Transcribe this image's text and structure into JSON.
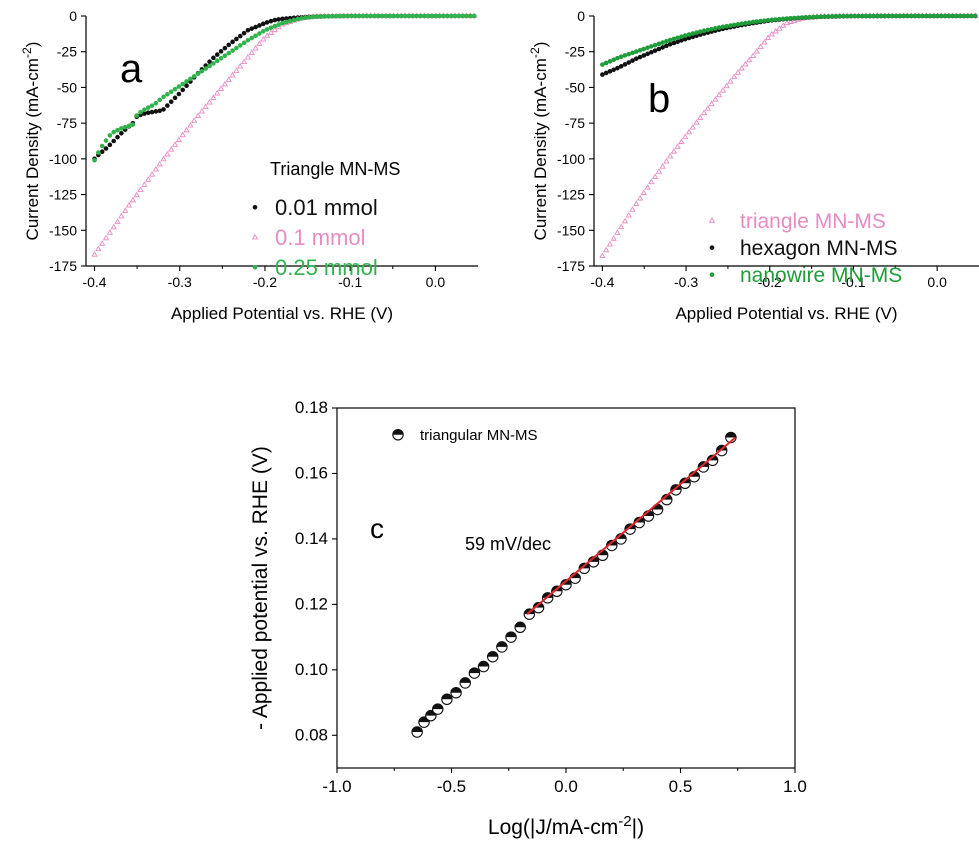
{
  "chart_data": [
    {
      "panel": "a",
      "type": "scatter",
      "panel_label": "a",
      "xlabel": "Applied Potential vs. RHE (V)",
      "ylabel": "Current Density (mA-cm",
      "ylabel_sup": "-2",
      "ylabel_end": ")",
      "xlim": [
        -0.41,
        0.05
      ],
      "ylim": [
        -175,
        0
      ],
      "xticks": [
        -0.4,
        -0.3,
        -0.2,
        -0.1,
        0.0
      ],
      "xtick_labels": [
        "-0.4",
        "-0.3",
        "-0.2",
        "-0.1",
        "0.0"
      ],
      "yticks": [
        0,
        -25,
        -50,
        -75,
        -100,
        -125,
        -150,
        -175
      ],
      "ytick_labels": [
        "0",
        "-25",
        "-50",
        "-75",
        "-100",
        "-125",
        "-150",
        "-175"
      ],
      "legend_title": "Triangle MN-MS",
      "legend_position": "lower-right",
      "series": [
        {
          "name": "0.01 mmol",
          "color": "#111111",
          "marker": "dot",
          "x": [
            -0.4,
            -0.395,
            -0.385,
            -0.375,
            -0.365,
            -0.355,
            -0.35,
            -0.34,
            -0.33,
            -0.32,
            -0.3,
            -0.28,
            -0.26,
            -0.24,
            -0.22,
            -0.2,
            -0.19,
            -0.18,
            -0.17,
            -0.16,
            -0.15,
            -0.14,
            -0.12,
            -0.1,
            -0.08,
            -0.05,
            0.0,
            0.05
          ],
          "y": [
            -100,
            -97,
            -92,
            -86,
            -80,
            -75,
            -70,
            -68,
            -67,
            -66,
            -54,
            -41,
            -29,
            -19,
            -10,
            -5,
            -3,
            -2,
            -1.5,
            -1,
            -0.6,
            -0.3,
            -0.1,
            0,
            0,
            0,
            0,
            0
          ]
        },
        {
          "name": "0.1 mmol",
          "color": "#e88bc4",
          "marker": "triangle",
          "x": [
            -0.4,
            -0.38,
            -0.36,
            -0.34,
            -0.32,
            -0.3,
            -0.28,
            -0.26,
            -0.24,
            -0.22,
            -0.2,
            -0.18,
            -0.16,
            -0.15,
            -0.14,
            -0.12,
            -0.1,
            -0.05,
            0.0,
            0.05
          ],
          "y": [
            -167,
            -150,
            -133,
            -117,
            -101,
            -86,
            -71,
            -57,
            -43,
            -29,
            -15,
            -6,
            -2,
            -1,
            -0.5,
            -0.2,
            0,
            0,
            0,
            0
          ]
        },
        {
          "name": "0.25 mmol",
          "color": "#2fb34a",
          "marker": "dot",
          "x": [
            -0.4,
            -0.395,
            -0.39,
            -0.38,
            -0.37,
            -0.36,
            -0.355,
            -0.35,
            -0.345,
            -0.34,
            -0.33,
            -0.32,
            -0.31,
            -0.3,
            -0.28,
            -0.26,
            -0.24,
            -0.22,
            -0.2,
            -0.18,
            -0.16,
            -0.15,
            -0.14,
            -0.12,
            -0.1,
            -0.05,
            0.0,
            0.05
          ],
          "y": [
            -101,
            -95,
            -90,
            -82,
            -79,
            -77,
            -76,
            -69,
            -67,
            -65,
            -62,
            -57,
            -53,
            -49,
            -41,
            -33,
            -25,
            -17,
            -10,
            -5,
            -2,
            -1,
            -0.5,
            -0.2,
            0,
            0,
            0,
            0
          ]
        }
      ]
    },
    {
      "panel": "b",
      "type": "scatter",
      "panel_label": "b",
      "xlabel": "Applied Potential vs. RHE (V)",
      "ylabel": "Current Density (mA-cm",
      "ylabel_sup": "-2",
      "ylabel_end": ")",
      "xlim": [
        -0.41,
        0.05
      ],
      "ylim": [
        -175,
        0
      ],
      "xticks": [
        -0.4,
        -0.3,
        -0.2,
        -0.1,
        0.0
      ],
      "xtick_labels": [
        "-0.4",
        "-0.3",
        "-0.2",
        "-0.1",
        "0.0"
      ],
      "yticks": [
        0,
        -25,
        -50,
        -75,
        -100,
        -125,
        -150,
        -175
      ],
      "ytick_labels": [
        "0",
        "-25",
        "-50",
        "-75",
        "-100",
        "-125",
        "-150",
        "-175"
      ],
      "legend_position": "lower-right",
      "series": [
        {
          "name": "triangle MN-MS",
          "color": "#e88bc4",
          "marker": "triangle",
          "x": [
            -0.4,
            -0.38,
            -0.36,
            -0.34,
            -0.32,
            -0.3,
            -0.28,
            -0.26,
            -0.24,
            -0.22,
            -0.2,
            -0.18,
            -0.16,
            -0.15,
            -0.14,
            -0.12,
            -0.1,
            -0.05,
            0.0,
            0.05
          ],
          "y": [
            -168,
            -150,
            -132,
            -115,
            -99,
            -84,
            -69,
            -55,
            -41,
            -28,
            -14,
            -5,
            -1.5,
            -0.8,
            -0.4,
            -0.1,
            0,
            0,
            0,
            0
          ]
        },
        {
          "name": "hexagon MN-MS",
          "color": "#111111",
          "marker": "dot",
          "x": [
            -0.4,
            -0.38,
            -0.36,
            -0.34,
            -0.32,
            -0.3,
            -0.28,
            -0.26,
            -0.24,
            -0.22,
            -0.2,
            -0.18,
            -0.16,
            -0.14,
            -0.12,
            -0.1,
            -0.05,
            0.0,
            0.05
          ],
          "y": [
            -41,
            -36,
            -30,
            -25,
            -20,
            -16,
            -12.5,
            -9.5,
            -7,
            -5,
            -3.2,
            -2,
            -1.2,
            -0.6,
            -0.3,
            -0.1,
            0,
            0,
            0
          ]
        },
        {
          "name": "nanowire MN-MS",
          "color": "#1f9d3a",
          "marker": "dot",
          "x": [
            -0.4,
            -0.38,
            -0.36,
            -0.34,
            -0.32,
            -0.3,
            -0.28,
            -0.26,
            -0.24,
            -0.22,
            -0.2,
            -0.18,
            -0.16,
            -0.14,
            -0.12,
            -0.1,
            -0.05,
            0.0,
            0.05
          ],
          "y": [
            -34,
            -29,
            -25,
            -21,
            -17,
            -13.5,
            -10.5,
            -8,
            -6,
            -4.2,
            -2.8,
            -1.8,
            -1,
            -0.5,
            -0.2,
            -0.1,
            0,
            0,
            0
          ]
        }
      ]
    },
    {
      "panel": "c",
      "type": "scatter",
      "panel_label": "c",
      "xlabel": "Log(|J/mA-cm",
      "xlabel_sup": "-2",
      "xlabel_end": "|)",
      "ylabel": "- Applied potential vs. RHE (V)",
      "xlim": [
        -1.0,
        1.0
      ],
      "ylim": [
        0.07,
        0.18
      ],
      "xticks": [
        -1.0,
        -0.5,
        0.0,
        0.5,
        1.0
      ],
      "xtick_labels": [
        "-1.0",
        "-0.5",
        "0.0",
        "0.5",
        "1.0"
      ],
      "yticks": [
        0.08,
        0.1,
        0.12,
        0.14,
        0.16,
        0.18
      ],
      "ytick_labels": [
        "0.08",
        "0.10",
        "0.12",
        "0.14",
        "0.16",
        "0.18"
      ],
      "legend_position": "top-left",
      "annotation": "59 mV/dec",
      "series": [
        {
          "name": "triangular MN-MS",
          "color": "#111111",
          "marker": "half-circle",
          "x": [
            -0.65,
            -0.62,
            -0.59,
            -0.56,
            -0.52,
            -0.48,
            -0.44,
            -0.4,
            -0.36,
            -0.32,
            -0.28,
            -0.24,
            -0.2,
            -0.16,
            -0.12,
            -0.08,
            -0.04,
            0.0,
            0.04,
            0.08,
            0.12,
            0.16,
            0.2,
            0.24,
            0.28,
            0.32,
            0.36,
            0.4,
            0.44,
            0.48,
            0.52,
            0.56,
            0.6,
            0.64,
            0.68,
            0.72
          ],
          "y": [
            0.081,
            0.084,
            0.086,
            0.088,
            0.091,
            0.093,
            0.096,
            0.099,
            0.101,
            0.104,
            0.107,
            0.11,
            0.113,
            0.117,
            0.119,
            0.122,
            0.124,
            0.126,
            0.128,
            0.131,
            0.133,
            0.135,
            0.138,
            0.14,
            0.143,
            0.145,
            0.147,
            0.149,
            0.152,
            0.155,
            0.157,
            0.159,
            0.162,
            0.164,
            0.167,
            0.171
          ]
        }
      ],
      "fit": {
        "color": "#e0262a",
        "x": [
          -0.17,
          0.74
        ],
        "y": [
          0.117,
          0.171
        ]
      }
    }
  ]
}
